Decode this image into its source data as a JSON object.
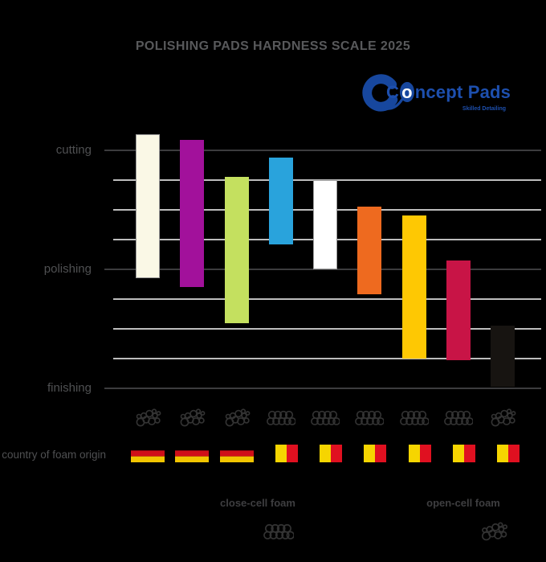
{
  "title": "POLISHING PADS HARDNESS SCALE 2025",
  "logo": {
    "brand": "Concept Pads",
    "tagline": "Skilled Detailing",
    "brand_color": "#1d4fae"
  },
  "axis": {
    "row_label": "country of foam origin",
    "labels": [
      {
        "text": "cutting",
        "line": 0
      },
      {
        "text": "polishing",
        "line": 4
      },
      {
        "text": "finishing",
        "line": 8
      }
    ]
  },
  "legend": {
    "close": "close-cell foam",
    "open": "open-cell foam"
  },
  "flag_colors": {
    "germany": [
      "#000000",
      "#d00f19",
      "#f2c500"
    ],
    "belgium": [
      "#000000",
      "#f6d500",
      "#e01020"
    ]
  },
  "chart_data": {
    "type": "bar",
    "subtype": "floating-range-columns",
    "title": "POLISHING PADS HARDNESS SCALE 2025",
    "value_axis": {
      "min": 0,
      "max": 8,
      "gridlines": 9,
      "labeled_levels": {
        "cutting": 8,
        "polishing": 4,
        "finishing": 0
      }
    },
    "pads": [
      {
        "color": "#faf8e6",
        "border": "#9c9c9c",
        "range": [
          3.7,
          8.55
        ],
        "foam": "open-cell",
        "country": "germany"
      },
      {
        "color": "#a2119b",
        "range": [
          3.4,
          8.35
        ],
        "foam": "open-cell",
        "country": "germany"
      },
      {
        "color": "#c4e05f",
        "range": [
          2.2,
          7.1
        ],
        "foam": "open-cell",
        "country": "germany"
      },
      {
        "color": "#29a3dc",
        "range": [
          4.85,
          7.75
        ],
        "foam": "close-cell",
        "country": "belgium"
      },
      {
        "color": "#ffffff",
        "border": "#9c9c9c",
        "range": [
          4.0,
          7.0
        ],
        "foam": "close-cell",
        "country": "belgium"
      },
      {
        "color": "#ee6a1f",
        "range": [
          3.15,
          6.1
        ],
        "foam": "close-cell",
        "country": "belgium"
      },
      {
        "color": "#fec803",
        "range": [
          1.0,
          5.8
        ],
        "foam": "close-cell",
        "country": "belgium"
      },
      {
        "color": "#c81446",
        "range": [
          0.95,
          4.3
        ],
        "foam": "close-cell",
        "country": "belgium"
      },
      {
        "color": "#171411",
        "range": [
          0.05,
          2.1
        ],
        "foam": "open-cell",
        "country": "belgium"
      }
    ]
  }
}
